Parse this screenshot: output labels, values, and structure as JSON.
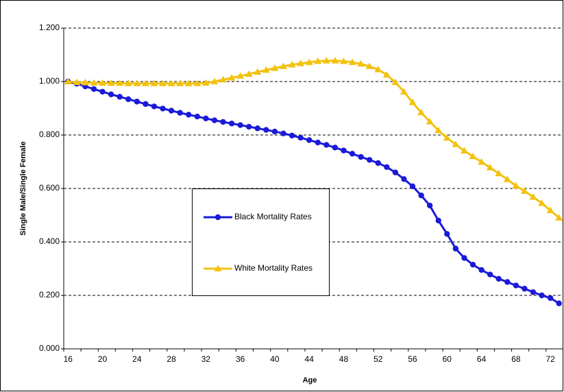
{
  "chart_data": {
    "type": "line",
    "x_label": "Age",
    "y_label": "Single Male/Single Female",
    "categories": [
      "16",
      null,
      null,
      null,
      "20",
      null,
      null,
      null,
      "24",
      null,
      null,
      null,
      "28",
      null,
      null,
      null,
      "32",
      null,
      null,
      null,
      "36",
      null,
      null,
      null,
      "40",
      null,
      null,
      null,
      "44",
      null,
      null,
      null,
      "48",
      null,
      null,
      null,
      "52",
      null,
      null,
      null,
      "56",
      null,
      null,
      null,
      "60",
      null,
      null,
      null,
      "64",
      null,
      null,
      null,
      "68",
      null,
      null,
      null,
      "72",
      null
    ],
    "ylim": [
      0,
      1.2
    ],
    "yticks": [
      {
        "value": 0,
        "label": "0.000"
      },
      {
        "value": 0.2,
        "label": "0.200"
      },
      {
        "value": 0.4,
        "label": "0.400"
      },
      {
        "value": 0.6,
        "label": "0.600"
      },
      {
        "value": 0.8,
        "label": "0.800"
      },
      {
        "value": 1.0,
        "label": "1.000"
      },
      {
        "value": 1.2,
        "label": "1.200"
      }
    ],
    "grid": true,
    "series": [
      {
        "name": "Black Mortality Rates",
        "color": "#1a1ad8",
        "marker": "circle",
        "values": [
          1.0,
          0.992,
          0.982,
          0.972,
          0.962,
          0.952,
          0.943,
          0.934,
          0.925,
          0.916,
          0.907,
          0.899,
          0.891,
          0.883,
          0.876,
          0.869,
          0.862,
          0.855,
          0.849,
          0.843,
          0.837,
          0.831,
          0.825,
          0.819,
          0.813,
          0.806,
          0.798,
          0.79,
          0.781,
          0.772,
          0.763,
          0.753,
          0.742,
          0.73,
          0.718,
          0.707,
          0.695,
          0.68,
          0.66,
          0.635,
          0.608,
          0.574,
          0.536,
          0.48,
          0.43,
          0.375,
          0.34,
          0.315,
          0.295,
          0.278,
          0.262,
          0.25,
          0.237,
          0.225,
          0.212,
          0.2,
          0.19,
          0.17
        ]
      },
      {
        "name": "White Mortality Rates",
        "color": "#f2c20f",
        "marker": "triangle",
        "values": [
          1.0,
          0.997,
          0.996,
          0.995,
          0.995,
          0.994,
          0.994,
          0.993,
          0.993,
          0.993,
          0.993,
          0.993,
          0.993,
          0.993,
          0.993,
          0.993,
          0.995,
          1.0,
          1.007,
          1.014,
          1.021,
          1.028,
          1.036,
          1.043,
          1.05,
          1.057,
          1.063,
          1.068,
          1.072,
          1.076,
          1.078,
          1.078,
          1.076,
          1.072,
          1.066,
          1.057,
          1.045,
          1.025,
          0.997,
          0.962,
          0.922,
          0.884,
          0.85,
          0.817,
          0.789,
          0.765,
          0.741,
          0.72,
          0.699,
          0.678,
          0.656,
          0.634,
          0.61,
          0.59,
          0.568,
          0.545,
          0.518,
          0.49
        ]
      }
    ],
    "legend": "center-left"
  }
}
